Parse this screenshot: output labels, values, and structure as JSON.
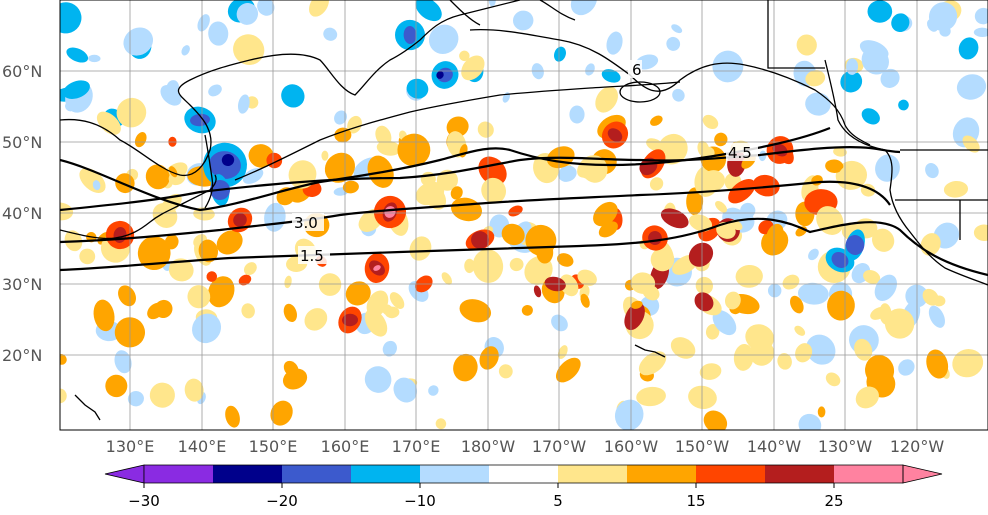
{
  "map": {
    "lat_labels": [
      "60°N",
      "50°N",
      "40°N",
      "30°N",
      "20°N"
    ],
    "lon_labels": [
      "130°E",
      "140°E",
      "150°E",
      "160°E",
      "170°E",
      "180°W",
      "170°W",
      "160°W",
      "150°W",
      "140°W",
      "130°W",
      "120°W"
    ],
    "contour_labels": [
      "6",
      "4.5",
      "3.0",
      "1.5"
    ],
    "contour_color": "#000000",
    "gridline_color": "#999999",
    "coastline_color": "#000000"
  },
  "colorbar": {
    "tick_labels": [
      "−30",
      "−20",
      "−10",
      "5",
      "15",
      "25"
    ],
    "colors": [
      "#8a2be2",
      "#00008b",
      "#3c5acd",
      "#00b4f0",
      "#b4dcff",
      "#ffffff",
      "#ffe68c",
      "#ffa500",
      "#ff4500",
      "#b41e1e",
      "#ff82a0"
    ],
    "extend": "both"
  }
}
